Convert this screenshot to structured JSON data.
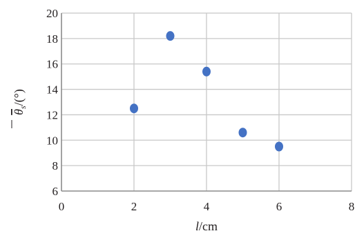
{
  "chart_data": {
    "type": "scatter",
    "title": "",
    "xlabel": "l/cm",
    "ylabel": "θs/(°)",
    "xlim": [
      0,
      8
    ],
    "ylim": [
      6,
      20
    ],
    "xticks": [
      0,
      2,
      4,
      6,
      8
    ],
    "yticks": [
      6,
      8,
      10,
      12,
      14,
      16,
      18,
      20
    ],
    "xtick_labels": [
      "0",
      "2",
      "4",
      "6",
      "8"
    ],
    "ytick_labels": [
      "6",
      "8",
      "10",
      "12",
      "14",
      "16",
      "18",
      "20"
    ],
    "grid": true,
    "legend": "none",
    "series": [
      {
        "x": [
          2,
          3,
          4,
          5,
          6
        ],
        "y": [
          12.5,
          18.2,
          15.4,
          10.6,
          9.5
        ]
      }
    ],
    "colors": {
      "marker": "#4472c4",
      "grid": "#c8c8c8",
      "axis": "#8c8c8c",
      "text": "#231f20"
    }
  },
  "axis_text": {
    "x_var": "l",
    "x_unit": "/cm",
    "y_var": "θ",
    "y_sub": "s",
    "y_unit": "/(°)"
  }
}
